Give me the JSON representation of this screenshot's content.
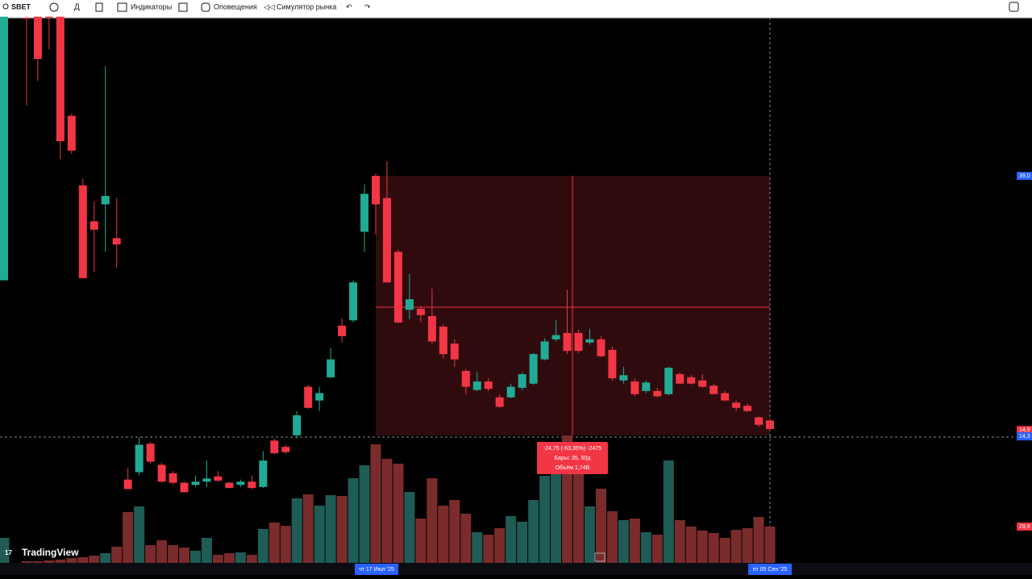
{
  "toolbar": {
    "symbol": "SBET",
    "indicators": "Индикаторы",
    "alerts": "Оповещения",
    "replay": "Симулятор рынка"
  },
  "chart_data": {
    "type": "candlestick",
    "up_color": "#22ab94",
    "down_color": "#f23645",
    "volume_up_color": "#1f5c55",
    "volume_down_color": "#7a2c2c",
    "ylim": [
      2.3,
      54.0
    ],
    "vlim": [
      0,
      100
    ],
    "candles": [
      [
        29.1,
        54.1,
        29.1,
        54.1
      ],
      null,
      [
        54.0,
        54.1,
        45.7,
        53.9
      ],
      [
        54.1,
        54.1,
        48.0,
        50.1
      ],
      [
        54.1,
        54.1,
        51.0,
        54.0
      ],
      [
        54.1,
        54.1,
        40.6,
        42.3
      ],
      [
        44.7,
        44.9,
        41.1,
        41.4
      ],
      [
        38.1,
        38.7,
        29.3,
        29.3
      ],
      [
        34.7,
        36.6,
        29.9,
        33.9
      ],
      [
        36.3,
        49.4,
        31.8,
        37.1
      ],
      [
        33.1,
        36.9,
        30.3,
        32.5
      ],
      [
        10.2,
        11.3,
        9.3,
        9.3
      ],
      [
        10.9,
        14.2,
        10.6,
        13.5
      ],
      [
        13.6,
        13.8,
        11.7,
        11.9
      ],
      [
        11.6,
        11.8,
        9.9,
        10.0
      ],
      [
        10.8,
        11.0,
        9.7,
        9.9
      ],
      [
        9.9,
        10.0,
        9.0,
        9.0
      ],
      [
        9.7,
        10.6,
        9.5,
        10.0
      ],
      [
        10.0,
        12.0,
        9.5,
        10.3
      ],
      [
        10.5,
        11.0,
        10.0,
        10.1
      ],
      [
        9.9,
        10.0,
        9.4,
        9.4
      ],
      [
        9.7,
        10.2,
        9.5,
        10.0
      ],
      [
        10.0,
        10.6,
        9.3,
        9.4
      ],
      [
        9.5,
        12.9,
        9.4,
        12.0
      ],
      [
        13.9,
        14.1,
        12.6,
        12.7
      ],
      [
        13.3,
        13.5,
        12.6,
        12.8
      ],
      [
        14.4,
        16.7,
        14.1,
        16.3
      ],
      [
        19.0,
        19.2,
        16.9,
        17.0
      ],
      [
        17.7,
        19.0,
        16.7,
        18.4
      ],
      [
        19.9,
        22.7,
        19.8,
        21.6
      ],
      [
        24.8,
        25.5,
        23.2,
        23.8
      ],
      [
        25.3,
        29.1,
        25.1,
        28.9
      ],
      [
        33.7,
        38.2,
        31.8,
        37.3
      ],
      [
        39.0,
        39.2,
        33.5,
        36.3
      ],
      [
        36.9,
        40.4,
        28.9,
        28.9
      ],
      [
        31.8,
        32.0,
        25.0,
        25.1
      ],
      [
        26.3,
        29.7,
        25.4,
        27.3
      ],
      [
        26.4,
        26.7,
        25.1,
        25.8
      ],
      [
        25.7,
        28.3,
        23.1,
        23.3
      ],
      [
        24.7,
        24.9,
        21.7,
        22.1
      ],
      [
        23.1,
        23.5,
        20.9,
        21.6
      ],
      [
        20.5,
        20.7,
        18.3,
        19.0
      ],
      [
        18.7,
        20.4,
        18.6,
        19.5
      ],
      [
        19.5,
        19.8,
        18.6,
        18.8
      ],
      [
        18.0,
        18.3,
        17.0,
        17.1
      ],
      [
        18.0,
        19.3,
        17.9,
        19.0
      ],
      [
        18.9,
        20.4,
        18.7,
        20.2
      ],
      [
        19.3,
        22.2,
        19.2,
        22.1
      ],
      [
        21.6,
        23.6,
        21.5,
        23.3
      ],
      [
        23.5,
        25.3,
        23.3,
        23.9
      ],
      [
        24.1,
        28.2,
        22.1,
        22.4
      ],
      [
        24.1,
        24.4,
        22.2,
        22.4
      ],
      [
        23.2,
        24.5,
        23.0,
        23.5
      ],
      [
        23.5,
        23.8,
        21.8,
        21.9
      ],
      [
        22.5,
        22.8,
        19.6,
        19.8
      ],
      [
        19.6,
        20.9,
        19.3,
        20.1
      ],
      [
        19.5,
        19.8,
        18.1,
        18.3
      ],
      [
        18.6,
        19.6,
        18.4,
        19.4
      ],
      [
        18.6,
        18.9,
        18.0,
        18.1
      ],
      [
        18.3,
        20.9,
        18.2,
        20.8
      ],
      [
        20.2,
        20.4,
        19.2,
        19.3
      ],
      [
        19.9,
        20.1,
        19.2,
        19.3
      ],
      [
        19.6,
        20.2,
        18.9,
        19.0
      ],
      [
        19.1,
        19.3,
        18.3,
        18.3
      ],
      [
        18.4,
        18.6,
        17.7,
        17.7
      ],
      [
        17.5,
        17.7,
        16.7,
        17.0
      ],
      [
        17.2,
        17.4,
        16.6,
        16.7
      ],
      [
        16.1,
        16.2,
        15.2,
        15.4
      ],
      [
        15.8,
        16.0,
        14.8,
        15.0
      ]
    ],
    "volume": [
      20.6,
      null,
      1.3,
      1.3,
      2.0,
      2.7,
      4.0,
      4.6,
      6.0,
      8.0,
      13.3,
      41.8,
      46.5,
      14.6,
      18.6,
      14.6,
      12.6,
      10.0,
      20.6,
      6.6,
      8.0,
      8.6,
      6.6,
      27.9,
      33.2,
      30.5,
      53.1,
      56.4,
      47.1,
      55.8,
      55.1,
      69.7,
      80.3,
      97.6,
      85.7,
      81.7,
      58.4,
      36.5,
      69.7,
      47.1,
      51.8,
      40.5,
      25.2,
      23.2,
      28.6,
      38.5,
      33.9,
      51.8,
      71.7,
      91.6,
      104.9,
      75.0,
      46.5,
      61.1,
      42.5,
      35.2,
      36.5,
      25.2,
      23.2,
      84.3,
      35.2,
      29.9,
      26.6,
      24.6,
      20.6,
      27.2,
      28.6,
      37.8,
      29.9
    ],
    "price_labels": [
      {
        "value": 39.0,
        "label": "39,0"
      },
      {
        "value": 14.9,
        "label": "14,9"
      },
      {
        "value": 14.3,
        "label": "14,3"
      }
    ],
    "volume_label": {
      "value": 29.9,
      "label": "29,9"
    },
    "dates": [
      "чт 17 Июл '25",
      "пт 05 Сен '25"
    ],
    "measure": [
      "-24,75 (-63,35%) -2475",
      "Бары: 35, 50д",
      "Объём 1,74B"
    ],
    "logo": "TradingView"
  }
}
